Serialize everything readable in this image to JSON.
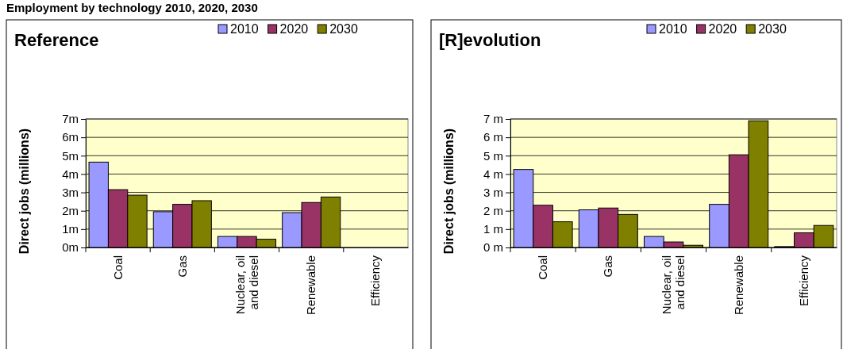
{
  "chart_data": [
    {
      "type": "bar",
      "title": "Employment by technology 2010, 2020, 2030",
      "subtitle": "Reference",
      "ylabel": "Direct jobs (millions)",
      "categories": [
        "Coal",
        "Gas",
        "Nuclear, oil and diesel",
        "Renewable",
        "Efficiency"
      ],
      "series": [
        {
          "name": "2010",
          "color": "#9999ff",
          "values": [
            4.65,
            1.95,
            0.6,
            1.9,
            null
          ]
        },
        {
          "name": "2020",
          "color": "#993366",
          "values": [
            3.15,
            2.35,
            0.6,
            2.45,
            null
          ]
        },
        {
          "name": "2030",
          "color": "#808000",
          "values": [
            2.85,
            2.55,
            0.45,
            2.75,
            null
          ]
        }
      ],
      "ylim": [
        0,
        7
      ],
      "yticks": [
        {
          "value": 0,
          "label": "0m"
        },
        {
          "value": 1,
          "label": "1m"
        },
        {
          "value": 2,
          "label": "2m"
        },
        {
          "value": 3,
          "label": "3m"
        },
        {
          "value": 4,
          "label": "4m"
        },
        {
          "value": 5,
          "label": "5m"
        },
        {
          "value": 6,
          "label": "6m"
        },
        {
          "value": 7,
          "label": "7m"
        }
      ],
      "grid": "y",
      "legend": "top right"
    },
    {
      "type": "bar",
      "subtitle": "[R]evolution",
      "ylabel": "Direct jobs (millions)",
      "categories": [
        "Coal",
        "Gas",
        "Nuclear, oil and diesel",
        "Renewable",
        "Efficiency"
      ],
      "series": [
        {
          "name": "2010",
          "color": "#9999ff",
          "values": [
            4.25,
            2.05,
            0.6,
            2.35,
            0.05
          ]
        },
        {
          "name": "2020",
          "color": "#993366",
          "values": [
            2.3,
            2.15,
            0.3,
            5.05,
            0.8
          ]
        },
        {
          "name": "2030",
          "color": "#808000",
          "values": [
            1.4,
            1.8,
            0.12,
            6.9,
            1.2
          ]
        }
      ],
      "ylim": [
        0,
        7
      ],
      "yticks": [
        {
          "value": 0,
          "label": "0 m"
        },
        {
          "value": 1,
          "label": "1 m"
        },
        {
          "value": 2,
          "label": "2 m"
        },
        {
          "value": 3,
          "label": "3 m"
        },
        {
          "value": 4,
          "label": "4 m"
        },
        {
          "value": 5,
          "label": "5 m"
        },
        {
          "value": 6,
          "label": "6 m"
        },
        {
          "value": 7,
          "label": "7 m"
        }
      ],
      "grid": "y",
      "legend": "top right"
    }
  ]
}
